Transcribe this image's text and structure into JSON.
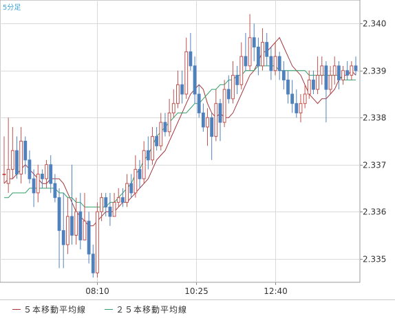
{
  "timeframe_label": "5分足",
  "legend": {
    "ma5": "５本移動平均線",
    "ma25": "２５本移動平均線"
  },
  "colors": {
    "up": "#c0504d",
    "down": "#4f81bd",
    "ma5": "#a4343a",
    "ma25": "#2e9e66",
    "grid": "#d9d9d9",
    "axis": "#888888",
    "text": "#333333"
  },
  "chart_data": {
    "type": "candlestick",
    "title": "",
    "ylim": [
      2.3345,
      2.3405
    ],
    "yticks": [
      "2.335",
      "2.336",
      "2.337",
      "2.338",
      "2.339",
      "2.340"
    ],
    "xticks": [
      "08:10",
      "10:25",
      "12:40"
    ],
    "series": [
      {
        "name": "ma5",
        "values": [
          2.3366,
          2.3367,
          2.3367,
          2.3368,
          2.3369,
          2.337,
          2.3369,
          2.3368,
          2.3367,
          2.3366,
          2.3366,
          2.3367,
          2.3367,
          2.3367,
          2.3366,
          2.3364,
          2.3362,
          2.336,
          2.3359,
          2.3358,
          2.3357,
          2.3357,
          2.3358,
          2.3359,
          2.336,
          2.336,
          2.336,
          2.3361,
          2.3362,
          2.3362,
          2.3363,
          2.3364,
          2.3365,
          2.3366,
          2.3367,
          2.3369,
          2.3371,
          2.3372,
          2.3373,
          2.3375,
          2.3377,
          2.3379,
          2.3381,
          2.3383,
          2.3385,
          2.3386,
          2.3387,
          2.3386,
          2.3383,
          2.3381,
          2.338,
          2.3381,
          2.338,
          2.338,
          2.3381,
          2.3383,
          2.3385,
          2.3387,
          2.3389,
          2.339,
          2.3392,
          2.3394,
          2.3394,
          2.3395,
          2.3396,
          2.3397,
          2.3395,
          2.3393,
          2.3391,
          2.339,
          2.3389,
          2.3387,
          2.3385,
          2.3384,
          2.3383,
          2.3384,
          2.3384,
          2.3385,
          2.3386,
          2.3388,
          2.3389,
          2.3389,
          2.339,
          2.3389
        ]
      },
      {
        "name": "ma25",
        "values": [
          2.3363,
          2.3363,
          2.3364,
          2.3364,
          2.3364,
          2.3364,
          2.3365,
          2.3365,
          2.3365,
          2.3365,
          2.3365,
          2.3365,
          2.3365,
          2.3364,
          2.3364,
          2.3363,
          2.3363,
          2.3362,
          2.3362,
          2.3361,
          2.3361,
          2.3361,
          2.3361,
          2.3361,
          2.3361,
          2.3362,
          2.3362,
          2.3363,
          2.3364,
          2.3365,
          2.3366,
          2.3368,
          2.3369,
          2.3371,
          2.3372,
          2.3374,
          2.3376,
          2.3377,
          2.3378,
          2.3379,
          2.338,
          2.3381,
          2.3381,
          2.3381,
          2.3382,
          2.3383,
          2.3383,
          2.3384,
          2.3385,
          2.3386,
          2.3386,
          2.3387,
          2.3387,
          2.3388,
          2.3388,
          2.3389,
          2.3389,
          2.339,
          2.339,
          2.339,
          2.3391,
          2.3391,
          2.3391,
          2.3391,
          2.3391,
          2.339,
          2.339,
          2.339,
          2.339,
          2.339,
          2.339,
          2.339,
          2.3389,
          2.3389,
          2.3389,
          2.3389,
          2.3389,
          2.3389,
          2.3389,
          2.3389,
          2.3388,
          2.3388,
          2.3388,
          2.3388
        ]
      }
    ],
    "candles": [
      [
        2.3368,
        2.3368,
        2.3376,
        2.3366
      ],
      [
        2.3366,
        2.3369,
        2.338,
        2.3364
      ],
      [
        2.3369,
        2.3373,
        2.3378,
        2.3367
      ],
      [
        2.3373,
        2.3368,
        2.3376,
        2.3367
      ],
      [
        2.3368,
        2.3375,
        2.3378,
        2.3366
      ],
      [
        2.3375,
        2.3371,
        2.3376,
        2.3368
      ],
      [
        2.3371,
        2.3367,
        2.3373,
        2.3366
      ],
      [
        2.3367,
        2.3364,
        2.3369,
        2.3361
      ],
      [
        2.3364,
        2.3368,
        2.337,
        2.3362
      ],
      [
        2.3368,
        2.3367,
        2.3369,
        2.3365
      ],
      [
        2.3367,
        2.337,
        2.3371,
        2.3365
      ],
      [
        2.337,
        2.3366,
        2.3372,
        2.3364
      ],
      [
        2.3366,
        2.3363,
        2.3368,
        2.3362
      ],
      [
        2.3363,
        2.3356,
        2.3365,
        2.3348
      ],
      [
        2.3356,
        2.3353,
        2.3364,
        2.3348
      ],
      [
        2.3353,
        2.3359,
        2.3363,
        2.3351
      ],
      [
        2.3359,
        2.3355,
        2.337,
        2.3353
      ],
      [
        2.3355,
        2.336,
        2.3363,
        2.3353
      ],
      [
        2.336,
        2.3354,
        2.3364,
        2.3352
      ],
      [
        2.3354,
        2.3358,
        2.3364,
        2.3354
      ],
      [
        2.3358,
        2.3351,
        2.336,
        2.3349
      ],
      [
        2.3351,
        2.3347,
        2.3353,
        2.3346
      ],
      [
        2.3347,
        2.336,
        2.3362,
        2.3346
      ],
      [
        2.336,
        2.3363,
        2.3364,
        2.3358
      ],
      [
        2.3363,
        2.3361,
        2.3364,
        2.3359
      ],
      [
        2.3361,
        2.3359,
        2.3364,
        2.3357
      ],
      [
        2.3359,
        2.3362,
        2.3364,
        2.3359
      ],
      [
        2.3362,
        2.3363,
        2.3365,
        2.3361
      ],
      [
        2.3363,
        2.3362,
        2.3365,
        2.3361
      ],
      [
        2.3362,
        2.3366,
        2.3368,
        2.3361
      ],
      [
        2.3366,
        2.3364,
        2.3368,
        2.3363
      ],
      [
        2.3364,
        2.3369,
        2.3372,
        2.3363
      ],
      [
        2.3369,
        2.3367,
        2.3371,
        2.3365
      ],
      [
        2.3367,
        2.3373,
        2.3375,
        2.3366
      ],
      [
        2.3373,
        2.3371,
        2.3376,
        2.3369
      ],
      [
        2.3371,
        2.3376,
        2.3378,
        2.337
      ],
      [
        2.3376,
        2.3374,
        2.3378,
        2.3373
      ],
      [
        2.3374,
        2.3379,
        2.3381,
        2.3373
      ],
      [
        2.3379,
        2.3377,
        2.3381,
        2.3376
      ],
      [
        2.3377,
        2.3381,
        2.3384,
        2.3376
      ],
      [
        2.3381,
        2.3383,
        2.3386,
        2.338
      ],
      [
        2.3383,
        2.3387,
        2.339,
        2.3382
      ],
      [
        2.3387,
        2.3385,
        2.339,
        2.3383
      ],
      [
        2.3385,
        2.3394,
        2.3397,
        2.3384
      ],
      [
        2.3394,
        2.3391,
        2.3398,
        2.339
      ],
      [
        2.3391,
        2.3385,
        2.3393,
        2.3383
      ],
      [
        2.3385,
        2.3381,
        2.3387,
        2.338
      ],
      [
        2.3381,
        2.3378,
        2.3383,
        2.3377
      ],
      [
        2.3378,
        2.338,
        2.3382,
        2.3374
      ],
      [
        2.338,
        2.3376,
        2.3381,
        2.3371
      ],
      [
        2.3376,
        2.3383,
        2.3386,
        2.3375
      ],
      [
        2.3383,
        2.3379,
        2.3384,
        2.3375
      ],
      [
        2.3379,
        2.3386,
        2.3388,
        2.3378
      ],
      [
        2.3386,
        2.3384,
        2.3389,
        2.3383
      ],
      [
        2.3384,
        2.3389,
        2.3392,
        2.3383
      ],
      [
        2.3389,
        2.3387,
        2.3391,
        2.3385
      ],
      [
        2.3387,
        2.3393,
        2.3396,
        2.3386
      ],
      [
        2.3393,
        2.3391,
        2.3398,
        2.339
      ],
      [
        2.3391,
        2.3397,
        2.3402,
        2.339
      ],
      [
        2.3397,
        2.3395,
        2.34,
        2.3392
      ],
      [
        2.3395,
        2.3391,
        2.3397,
        2.3389
      ],
      [
        2.3391,
        2.3396,
        2.3399,
        2.339
      ],
      [
        2.3396,
        2.3393,
        2.3398,
        2.3391
      ],
      [
        2.3393,
        2.339,
        2.3395,
        2.3388
      ],
      [
        2.339,
        2.3393,
        2.3396,
        2.3389
      ],
      [
        2.3393,
        2.339,
        2.3394,
        2.3388
      ],
      [
        2.339,
        2.3388,
        2.3392,
        2.3386
      ],
      [
        2.3388,
        2.3385,
        2.339,
        2.3383
      ],
      [
        2.3385,
        2.3383,
        2.3388,
        2.3381
      ],
      [
        2.3383,
        2.3381,
        2.3386,
        2.338
      ],
      [
        2.3381,
        2.3383,
        2.3385,
        2.3379
      ],
      [
        2.3383,
        2.3385,
        2.3387,
        2.3382
      ],
      [
        2.3385,
        2.3388,
        2.339,
        2.3384
      ],
      [
        2.3388,
        2.3386,
        2.339,
        2.3385
      ],
      [
        2.3386,
        2.3389,
        2.3393,
        2.3385
      ],
      [
        2.3389,
        2.3391,
        2.3393,
        2.3387
      ],
      [
        2.3391,
        2.3386,
        2.3392,
        2.3379
      ],
      [
        2.3386,
        2.3389,
        2.3391,
        2.3385
      ],
      [
        2.3389,
        2.3391,
        2.3393,
        2.3387
      ],
      [
        2.3391,
        2.3388,
        2.3392,
        2.3386
      ],
      [
        2.3388,
        2.339,
        2.3391,
        2.3387
      ],
      [
        2.339,
        2.3389,
        2.3392,
        2.3388
      ],
      [
        2.3389,
        2.3391,
        2.3392,
        2.3388
      ],
      [
        2.3391,
        2.339,
        2.3393,
        2.3389
      ]
    ]
  }
}
